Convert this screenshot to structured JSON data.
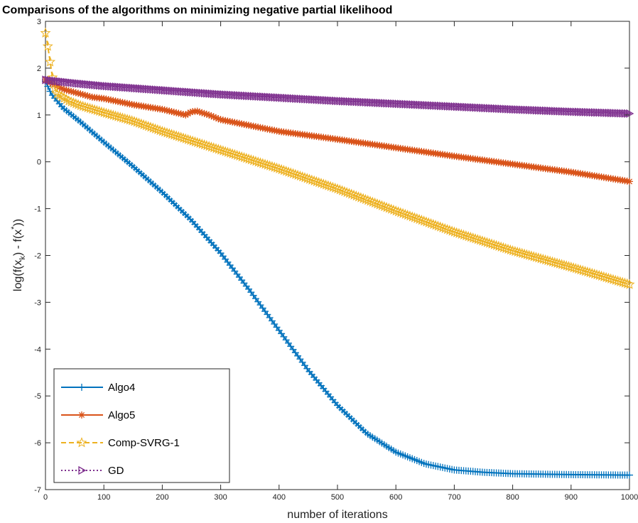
{
  "chart_data": {
    "type": "line",
    "title": "Comparisons of the algorithms on minimizing negative partial likelihood",
    "xlabel": "number of iterations",
    "ylabel": "log(f(x_k) - f(x^*))",
    "ylabel_parts": {
      "base1": "log(f(x",
      "sub": "k",
      "mid": ") - f(x",
      "sup": "*",
      "end": "))"
    },
    "xlim": [
      0,
      1000
    ],
    "ylim": [
      -7,
      3
    ],
    "xticks": [
      "0",
      "100",
      "200",
      "300",
      "400",
      "500",
      "600",
      "700",
      "800",
      "900",
      "1000"
    ],
    "yticks": [
      "-7",
      "-6",
      "-5",
      "-4",
      "-3",
      "-2",
      "-1",
      "0",
      "1",
      "2",
      "3"
    ],
    "grid": false,
    "legend_position": "bottom-left",
    "series": [
      {
        "name": "Algo4",
        "color": "#0072BD",
        "marker": "plus",
        "line_style": "solid",
        "points": [
          [
            0,
            1.72
          ],
          [
            10,
            1.45
          ],
          [
            30,
            1.15
          ],
          [
            60,
            0.85
          ],
          [
            100,
            0.42
          ],
          [
            150,
            -0.1
          ],
          [
            200,
            -0.65
          ],
          [
            250,
            -1.25
          ],
          [
            300,
            -1.95
          ],
          [
            350,
            -2.75
          ],
          [
            400,
            -3.6
          ],
          [
            450,
            -4.45
          ],
          [
            500,
            -5.2
          ],
          [
            550,
            -5.8
          ],
          [
            600,
            -6.2
          ],
          [
            650,
            -6.45
          ],
          [
            700,
            -6.58
          ],
          [
            750,
            -6.63
          ],
          [
            800,
            -6.66
          ],
          [
            900,
            -6.68
          ],
          [
            1000,
            -6.69
          ]
        ]
      },
      {
        "name": "Algo5",
        "color": "#D95319",
        "marker": "asterisk",
        "line_style": "solid",
        "points": [
          [
            0,
            1.75
          ],
          [
            30,
            1.55
          ],
          [
            60,
            1.45
          ],
          [
            80,
            1.38
          ],
          [
            100,
            1.35
          ],
          [
            150,
            1.22
          ],
          [
            200,
            1.12
          ],
          [
            240,
            1.0
          ],
          [
            250,
            1.07
          ],
          [
            260,
            1.08
          ],
          [
            280,
            1.0
          ],
          [
            300,
            0.9
          ],
          [
            400,
            0.65
          ],
          [
            500,
            0.48
          ],
          [
            600,
            0.3
          ],
          [
            700,
            0.12
          ],
          [
            800,
            -0.05
          ],
          [
            900,
            -0.22
          ],
          [
            1000,
            -0.42
          ]
        ]
      },
      {
        "name": "Comp-SVRG-1",
        "color": "#EDB120",
        "marker": "star",
        "line_style": "dashed",
        "points": [
          [
            0,
            2.75
          ],
          [
            3,
            2.55
          ],
          [
            6,
            2.3
          ],
          [
            9,
            2.05
          ],
          [
            12,
            1.8
          ],
          [
            15,
            1.6
          ],
          [
            20,
            1.45
          ],
          [
            40,
            1.3
          ],
          [
            60,
            1.2
          ],
          [
            100,
            1.05
          ],
          [
            150,
            0.87
          ],
          [
            200,
            0.65
          ],
          [
            250,
            0.45
          ],
          [
            300,
            0.25
          ],
          [
            400,
            -0.15
          ],
          [
            500,
            -0.58
          ],
          [
            600,
            -1.05
          ],
          [
            700,
            -1.5
          ],
          [
            800,
            -1.9
          ],
          [
            900,
            -2.25
          ],
          [
            1000,
            -2.62
          ]
        ]
      },
      {
        "name": "GD",
        "color": "#7E2F8E",
        "marker": "triangle-right",
        "line_style": "dotted",
        "points": [
          [
            0,
            1.75
          ],
          [
            50,
            1.68
          ],
          [
            100,
            1.62
          ],
          [
            200,
            1.53
          ],
          [
            300,
            1.44
          ],
          [
            400,
            1.37
          ],
          [
            500,
            1.3
          ],
          [
            600,
            1.24
          ],
          [
            700,
            1.18
          ],
          [
            800,
            1.12
          ],
          [
            900,
            1.07
          ],
          [
            1000,
            1.03
          ]
        ]
      }
    ]
  }
}
